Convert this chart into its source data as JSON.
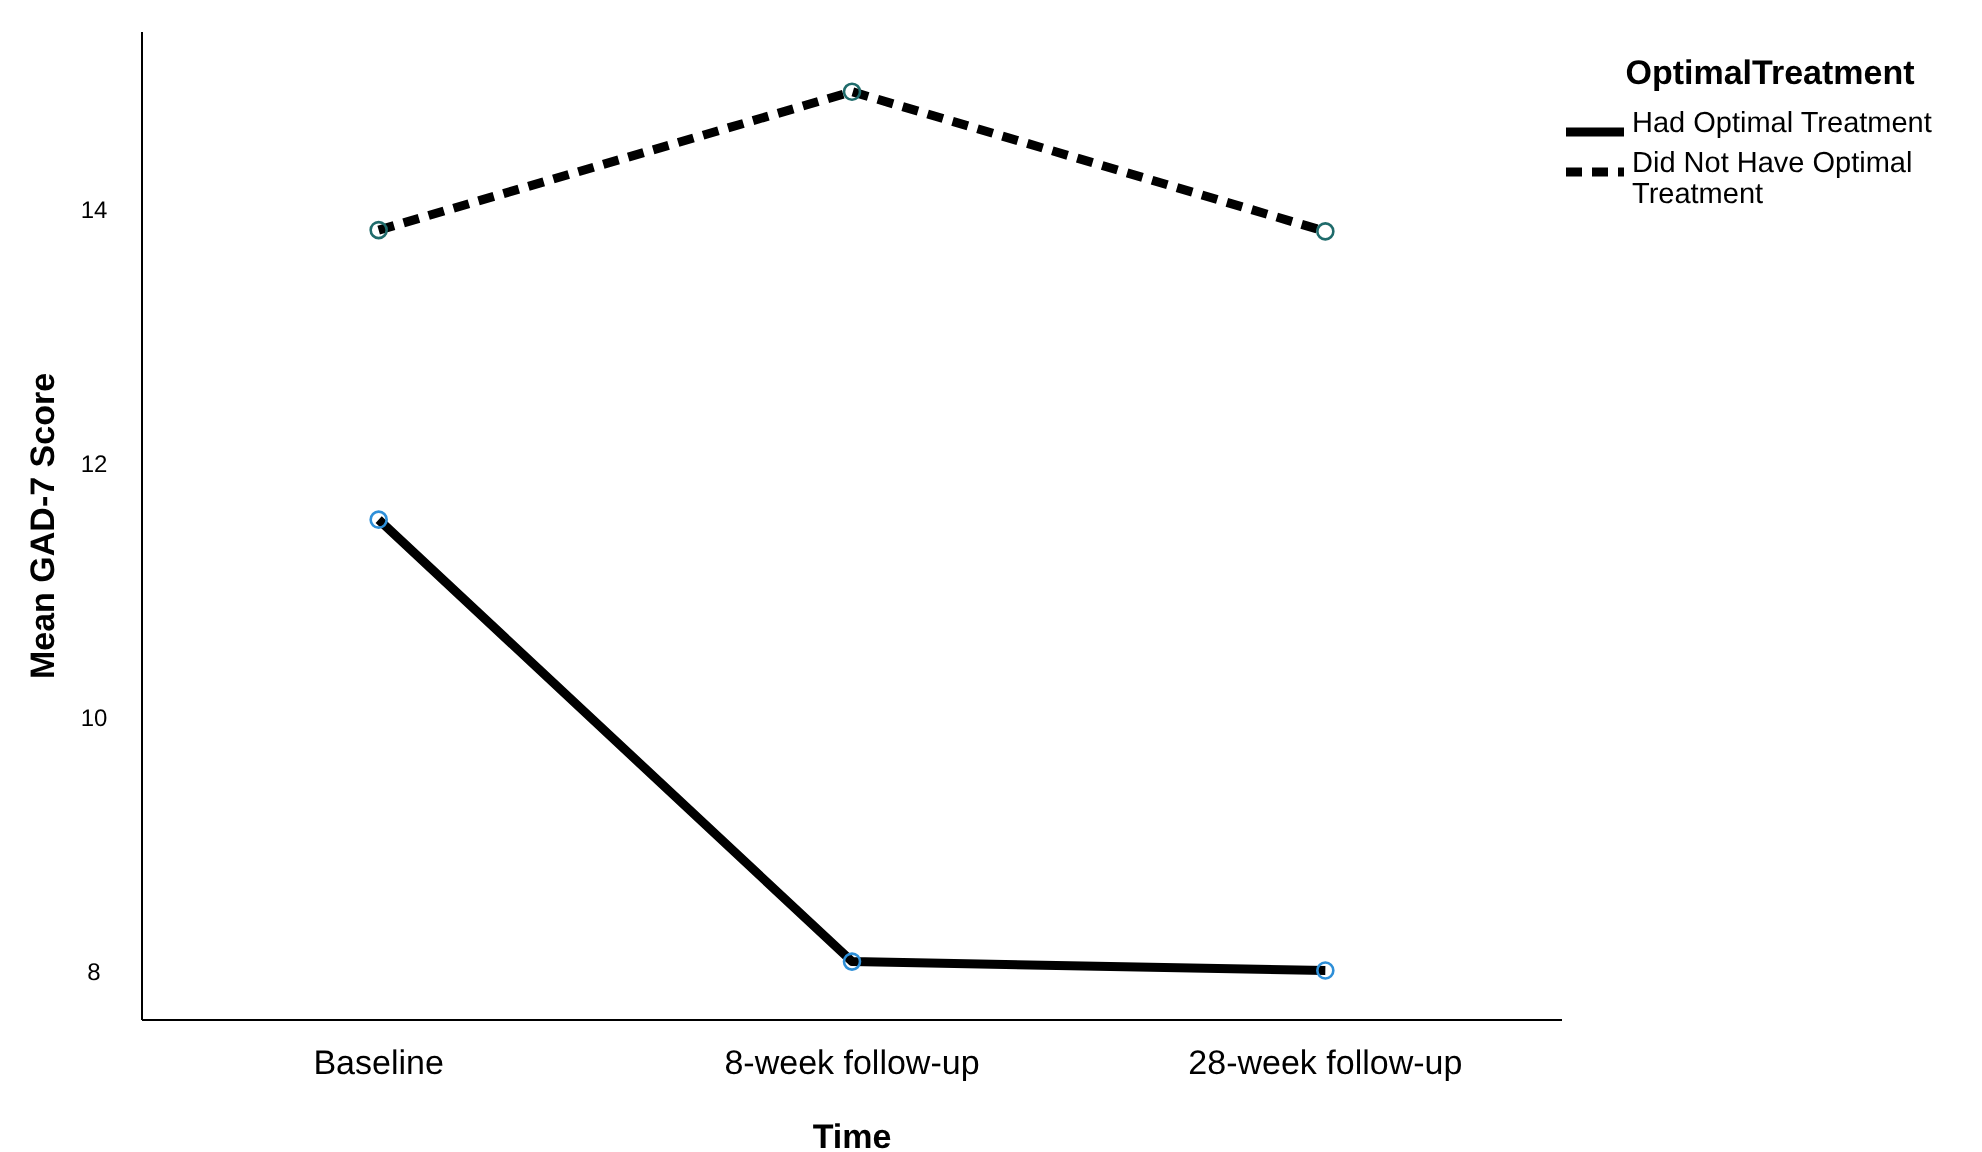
{
  "chart_data": {
    "type": "line",
    "xlabel": "Time",
    "ylabel": "Mean GAD-7 Score",
    "legend_title": "OptimalTreatment",
    "categories": [
      "Baseline",
      "8-week follow-up",
      "28-week follow-up"
    ],
    "series": [
      {
        "name": "Had Optimal Treatment",
        "color": "#000000",
        "line_style": "solid",
        "values": [
          11.56,
          8.08,
          8.01
        ]
      },
      {
        "name": "Did Not Have Optimal Treatment",
        "color": "#000000",
        "line_style": "dashed",
        "values": [
          13.84,
          14.93,
          13.83
        ]
      }
    ],
    "ylim": [
      7.62,
      15.4
    ],
    "yticks": [
      8,
      10,
      12,
      14
    ],
    "grid": false,
    "legend": "top right",
    "marker": "circle"
  }
}
